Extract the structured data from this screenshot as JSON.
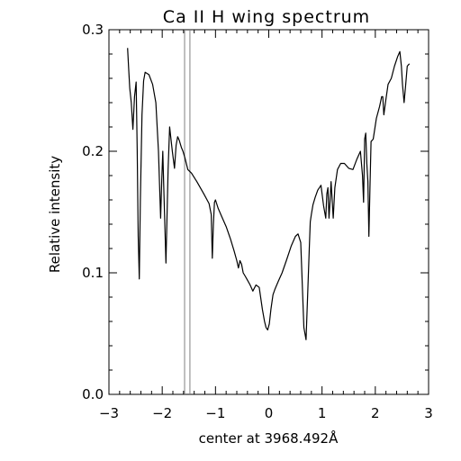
{
  "chart_data": {
    "type": "line",
    "title": "Ca II H wing spectrum",
    "xlabel": "center at 3968.492Å",
    "ylabel": "Relative intensity",
    "xlim": [
      -3,
      3
    ],
    "ylim": [
      0.0,
      0.3
    ],
    "x_ticks": [
      -3,
      -2,
      -1,
      0,
      1,
      2,
      3
    ],
    "x_tick_labels": [
      "−3",
      "−2",
      "−1",
      "0",
      "1",
      "2",
      "3"
    ],
    "y_ticks": [
      0.0,
      0.1,
      0.2,
      0.3
    ],
    "y_tick_labels": [
      "0.0",
      "0.1",
      "0.2",
      "0.3"
    ],
    "x_minor_step": 0.2,
    "y_minor_step": 0.02,
    "grid": false,
    "line_color": "#000000",
    "vertical_markers_x": [
      -1.58,
      -1.48
    ],
    "vertical_marker_color": "#808080",
    "series": [
      {
        "x": [
          -2.65,
          -2.63,
          -2.61,
          -2.58,
          -2.55,
          -2.52,
          -2.49,
          -2.47,
          -2.45,
          -2.43,
          -2.41,
          -2.38,
          -2.35,
          -2.32,
          -2.25,
          -2.18,
          -2.12,
          -2.07,
          -2.03,
          -2.01,
          -1.99,
          -1.97,
          -1.93,
          -1.89,
          -1.86,
          -1.84,
          -1.81,
          -1.77,
          -1.74,
          -1.71,
          -1.68,
          -1.64,
          -1.61,
          -1.57,
          -1.52,
          -1.45,
          -1.35,
          -1.22,
          -1.12,
          -1.08,
          -1.06,
          -1.04,
          -1.02,
          -1.0,
          -0.95,
          -0.88,
          -0.8,
          -0.72,
          -0.65,
          -0.6,
          -0.57,
          -0.54,
          -0.51,
          -0.48,
          -0.44,
          -0.4,
          -0.35,
          -0.3,
          -0.24,
          -0.18,
          -0.12,
          -0.08,
          -0.05,
          -0.02,
          0.01,
          0.04,
          0.08,
          0.12,
          0.18,
          0.25,
          0.33,
          0.42,
          0.5,
          0.55,
          0.6,
          0.66,
          0.7,
          0.73,
          0.76,
          0.78,
          0.8,
          0.83,
          0.87,
          0.92,
          0.98,
          1.03,
          1.07,
          1.09,
          1.11,
          1.13,
          1.15,
          1.17,
          1.19,
          1.21,
          1.24,
          1.29,
          1.35,
          1.42,
          1.5,
          1.58,
          1.65,
          1.72,
          1.76,
          1.78,
          1.8,
          1.82,
          1.84,
          1.86,
          1.88,
          1.9,
          1.92,
          1.96,
          2.02,
          2.08,
          2.12,
          2.14,
          2.16,
          2.19,
          2.24,
          2.3,
          2.36,
          2.42,
          2.46,
          2.49,
          2.51,
          2.54,
          2.57,
          2.6,
          2.64
        ],
        "y": [
          0.285,
          0.268,
          0.252,
          0.24,
          0.218,
          0.245,
          0.257,
          0.2,
          0.13,
          0.095,
          0.16,
          0.23,
          0.258,
          0.265,
          0.263,
          0.255,
          0.24,
          0.2,
          0.145,
          0.175,
          0.2,
          0.17,
          0.108,
          0.185,
          0.22,
          0.212,
          0.2,
          0.186,
          0.205,
          0.212,
          0.209,
          0.203,
          0.2,
          0.194,
          0.185,
          0.182,
          0.175,
          0.165,
          0.157,
          0.148,
          0.112,
          0.14,
          0.158,
          0.16,
          0.153,
          0.146,
          0.138,
          0.128,
          0.118,
          0.11,
          0.104,
          0.11,
          0.107,
          0.1,
          0.097,
          0.094,
          0.09,
          0.085,
          0.09,
          0.088,
          0.07,
          0.06,
          0.055,
          0.053,
          0.058,
          0.07,
          0.082,
          0.087,
          0.093,
          0.1,
          0.11,
          0.122,
          0.13,
          0.132,
          0.125,
          0.055,
          0.045,
          0.082,
          0.12,
          0.142,
          0.148,
          0.156,
          0.162,
          0.168,
          0.172,
          0.155,
          0.145,
          0.165,
          0.17,
          0.145,
          0.158,
          0.175,
          0.16,
          0.145,
          0.17,
          0.185,
          0.19,
          0.19,
          0.186,
          0.185,
          0.193,
          0.2,
          0.18,
          0.158,
          0.21,
          0.215,
          0.19,
          0.175,
          0.13,
          0.17,
          0.208,
          0.21,
          0.227,
          0.237,
          0.245,
          0.245,
          0.23,
          0.24,
          0.255,
          0.26,
          0.27,
          0.278,
          0.282,
          0.27,
          0.255,
          0.24,
          0.255,
          0.27,
          0.272
        ]
      }
    ]
  }
}
